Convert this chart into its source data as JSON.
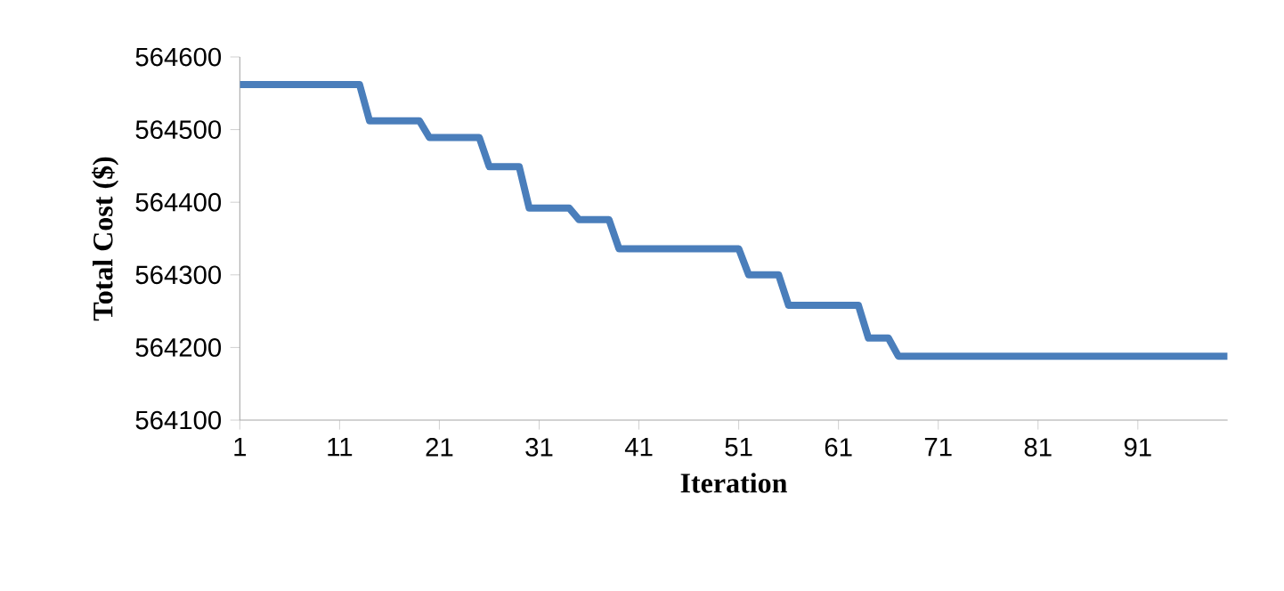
{
  "chart_data": {
    "type": "line",
    "xlabel": "Iteration",
    "ylabel": "Total Cost ($)",
    "series": [
      {
        "color": "#4a7ebb",
        "x": [
          1,
          13,
          14,
          19,
          20,
          25,
          26,
          29,
          30,
          34,
          35,
          38,
          39,
          51,
          52,
          55,
          56,
          63,
          64,
          66,
          67,
          100
        ],
        "values": [
          564562,
          564562,
          564512,
          564512,
          564489,
          564489,
          564449,
          564449,
          564392,
          564392,
          564376,
          564376,
          564336,
          564336,
          564300,
          564300,
          564258,
          564258,
          564213,
          564213,
          564188,
          564188
        ]
      }
    ],
    "xlim": [
      1,
      100
    ],
    "xticks": [
      1,
      11,
      21,
      31,
      41,
      51,
      61,
      71,
      81,
      91
    ],
    "ylim": [
      564100,
      564600
    ],
    "yticks": [
      564100,
      564200,
      564300,
      564400,
      564500,
      564600
    ],
    "grid": false,
    "marker": "none",
    "line_style": "solid"
  }
}
